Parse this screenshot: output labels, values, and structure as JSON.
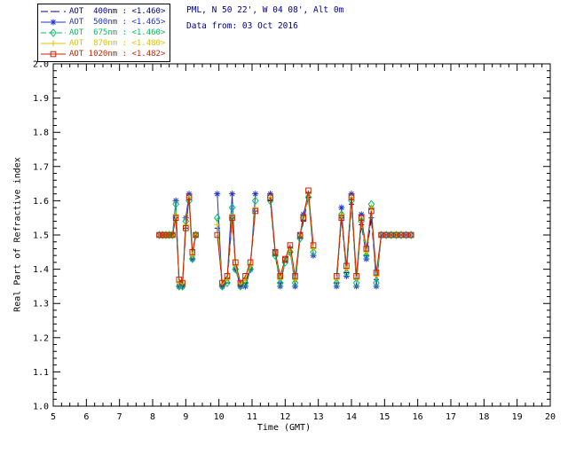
{
  "header": {
    "line1": "PML, N 50 22', W 04 08', Alt 0m",
    "line2": "Data from: 03 Oct 2016",
    "color": "#00008b"
  },
  "legend": {
    "position": "top-left",
    "items": [
      "AOT  400nm : <1.460>",
      "AOT  500nm : <1.465>",
      "AOT  675nm : <1.460>",
      "AOT  870nm : <1.480>",
      "AOT 1020nm : <1.482>"
    ]
  },
  "chart_data": {
    "type": "line",
    "title": "",
    "xlabel": "Time (GMT)",
    "ylabel": "Real Part of Refractive index",
    "xlim": [
      5,
      20
    ],
    "xtick": 1,
    "xminor": 0.25,
    "ylim": [
      1.0,
      2.0
    ],
    "ytick": 0.1,
    "yminor": 0.02,
    "grid": false,
    "legend_position": "top-left",
    "gap_threshold": 0.4,
    "x": [
      8.2,
      8.3,
      8.4,
      8.5,
      8.6,
      8.7,
      8.8,
      8.9,
      9.0,
      9.1,
      9.2,
      9.3,
      9.95,
      10.1,
      10.25,
      10.4,
      10.5,
      10.65,
      10.8,
      10.95,
      11.1,
      11.55,
      11.7,
      11.85,
      12.0,
      12.15,
      12.3,
      12.45,
      12.55,
      12.7,
      12.85,
      13.55,
      13.7,
      13.85,
      14.0,
      14.15,
      14.3,
      14.45,
      14.6,
      14.75,
      14.9,
      15.05,
      15.2,
      15.35,
      15.5,
      15.65,
      15.8
    ],
    "series": [
      {
        "name": "AOT 400nm",
        "mean": "<1.460>",
        "color": "#000085",
        "dash": "8,5",
        "marker": "dash",
        "values": [
          1.5,
          1.5,
          1.5,
          1.5,
          1.5,
          1.55,
          1.36,
          1.35,
          1.52,
          1.61,
          1.44,
          1.5,
          1.52,
          1.35,
          1.36,
          1.55,
          1.41,
          1.35,
          1.36,
          1.41,
          1.57,
          1.6,
          1.44,
          1.36,
          1.42,
          1.45,
          1.37,
          1.49,
          1.54,
          1.61,
          1.46,
          1.36,
          1.55,
          1.39,
          1.59,
          1.37,
          1.53,
          1.44,
          1.55,
          1.37,
          1.5,
          1.5,
          1.5,
          1.5,
          1.5,
          1.5,
          1.5
        ]
      },
      {
        "name": "AOT 500nm",
        "mean": "<1.465>",
        "color": "#2233cc",
        "dash": "",
        "marker": "asterisk",
        "values": [
          1.5,
          1.5,
          1.5,
          1.5,
          1.5,
          1.6,
          1.35,
          1.35,
          1.55,
          1.62,
          1.43,
          1.5,
          1.62,
          1.35,
          1.37,
          1.62,
          1.4,
          1.35,
          1.35,
          1.4,
          1.62,
          1.62,
          1.45,
          1.35,
          1.43,
          1.46,
          1.35,
          1.5,
          1.56,
          1.62,
          1.44,
          1.35,
          1.58,
          1.38,
          1.62,
          1.35,
          1.56,
          1.43,
          1.58,
          1.35,
          1.5,
          1.5,
          1.5,
          1.5,
          1.5,
          1.5,
          1.5
        ]
      },
      {
        "name": "AOT 675nm",
        "mean": "<1.460>",
        "color": "#00c060",
        "dash": "6,3",
        "marker": "diamond",
        "values": [
          1.5,
          1.5,
          1.5,
          1.5,
          1.5,
          1.59,
          1.35,
          1.35,
          1.54,
          1.6,
          1.43,
          1.5,
          1.55,
          1.35,
          1.36,
          1.58,
          1.4,
          1.35,
          1.36,
          1.4,
          1.6,
          1.6,
          1.44,
          1.36,
          1.42,
          1.45,
          1.36,
          1.49,
          1.55,
          1.61,
          1.45,
          1.36,
          1.56,
          1.39,
          1.6,
          1.36,
          1.54,
          1.44,
          1.59,
          1.36,
          1.5,
          1.5,
          1.5,
          1.5,
          1.5,
          1.5,
          1.5
        ]
      },
      {
        "name": "AOT 870nm",
        "mean": "<1.480>",
        "color": "#d8c500",
        "dash": "",
        "marker": "plus",
        "values": [
          1.5,
          1.5,
          1.5,
          1.5,
          1.5,
          1.56,
          1.36,
          1.36,
          1.53,
          1.61,
          1.44,
          1.5,
          1.53,
          1.36,
          1.37,
          1.56,
          1.41,
          1.36,
          1.37,
          1.41,
          1.58,
          1.61,
          1.45,
          1.37,
          1.43,
          1.46,
          1.37,
          1.5,
          1.55,
          1.62,
          1.46,
          1.37,
          1.56,
          1.4,
          1.61,
          1.37,
          1.55,
          1.45,
          1.58,
          1.38,
          1.5,
          1.5,
          1.5,
          1.5,
          1.5,
          1.5,
          1.5
        ]
      },
      {
        "name": "AOT 1020nm",
        "mean": "<1.482>",
        "color": "#cc2200",
        "dash": "",
        "marker": "square",
        "values": [
          1.5,
          1.5,
          1.5,
          1.5,
          1.5,
          1.55,
          1.37,
          1.36,
          1.52,
          1.61,
          1.45,
          1.5,
          1.5,
          1.36,
          1.38,
          1.55,
          1.42,
          1.36,
          1.38,
          1.42,
          1.57,
          1.61,
          1.45,
          1.38,
          1.43,
          1.47,
          1.38,
          1.5,
          1.55,
          1.63,
          1.47,
          1.38,
          1.55,
          1.41,
          1.61,
          1.38,
          1.55,
          1.46,
          1.57,
          1.39,
          1.5,
          1.5,
          1.5,
          1.5,
          1.5,
          1.5,
          1.5
        ]
      }
    ]
  }
}
